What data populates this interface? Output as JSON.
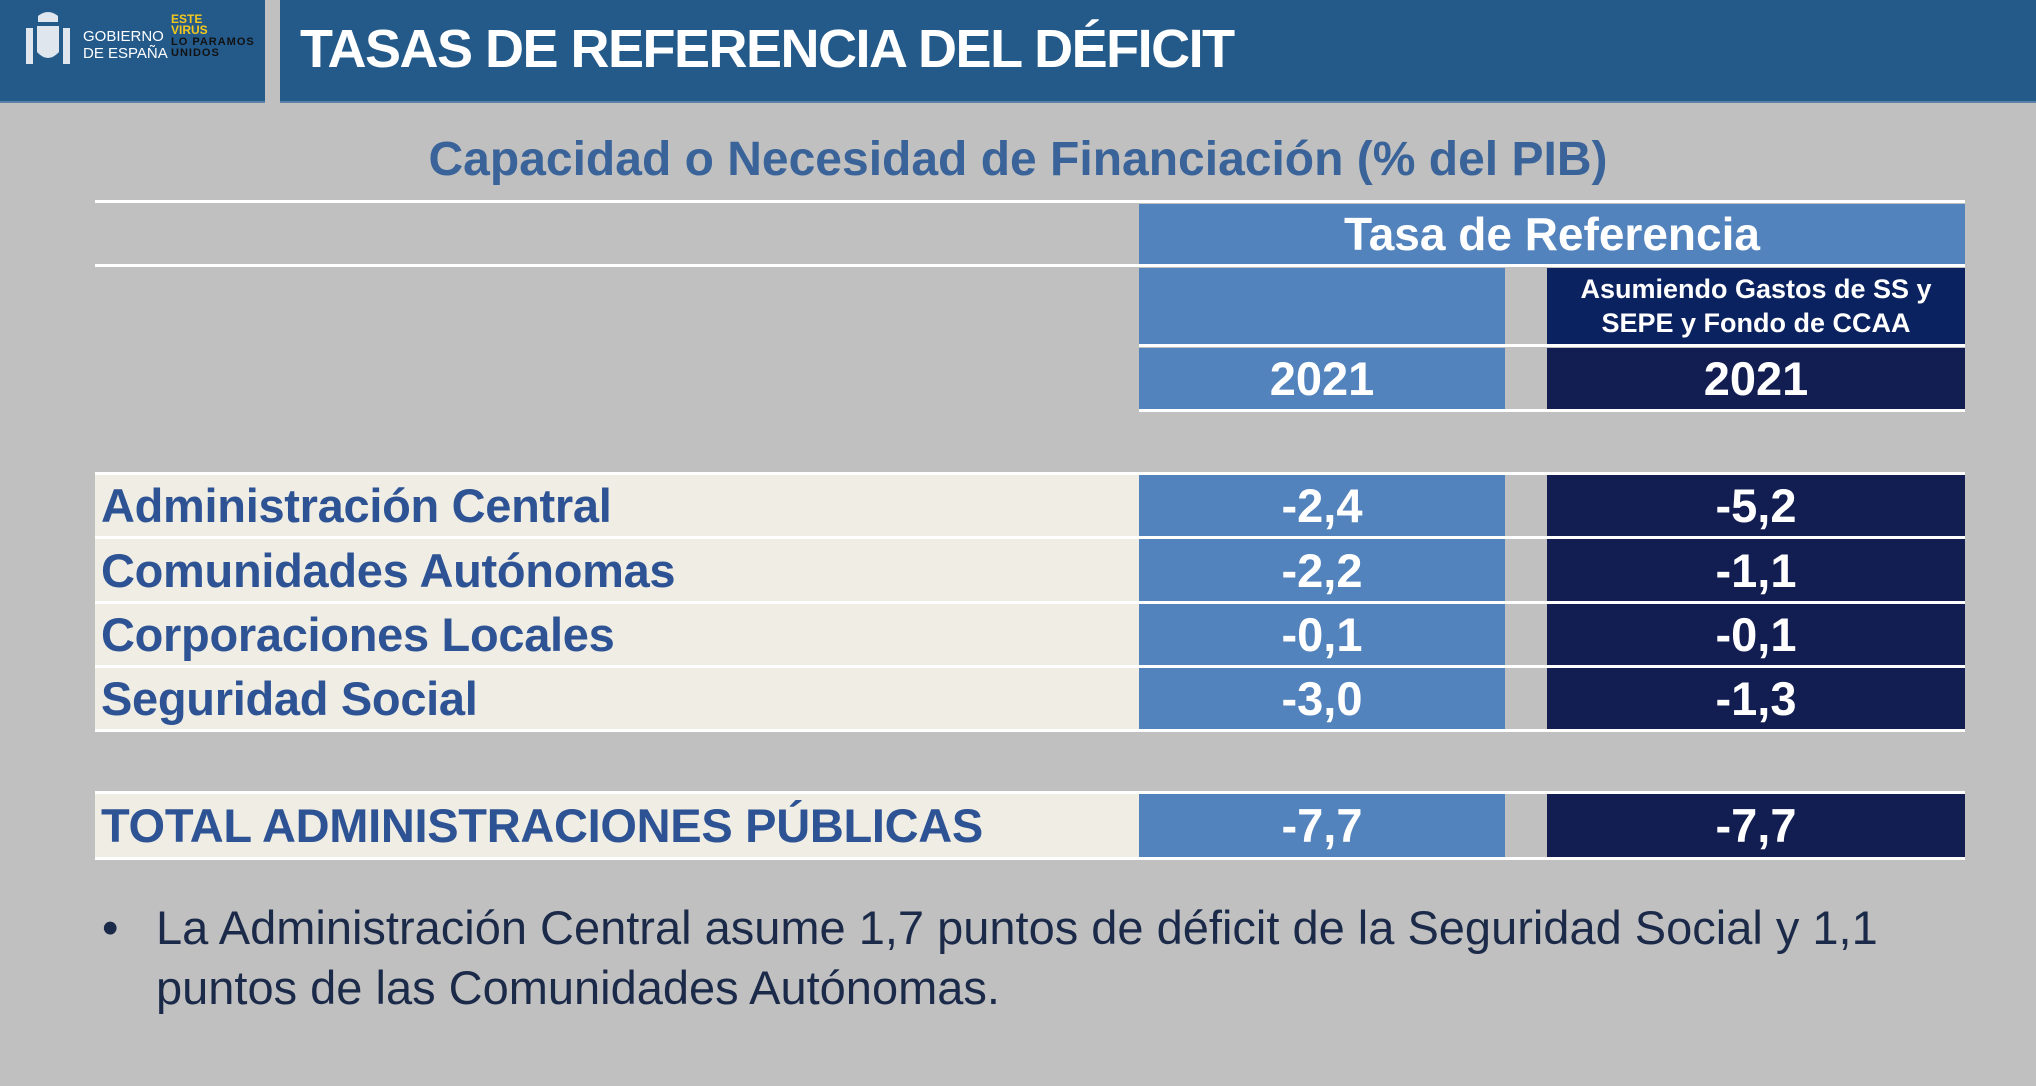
{
  "header": {
    "logo_text": [
      "GOBIERNO",
      "DE ESPAÑA"
    ],
    "campaign_logo": [
      "ESTE VIRUS",
      "LO PARAMOS",
      "UNIDOS"
    ],
    "title": "TASAS DE REFERENCIA DEL DÉFICIT"
  },
  "subtitle": "Capacidad o Necesidad de Financiación (% del PIB)",
  "table": {
    "group_header": "Tasa de  Referencia",
    "col2_subheader": "Asumiendo Gastos de SS y SEPE y Fondo de CCAA",
    "col1_year": "2021",
    "col2_year": "2021",
    "rows": [
      {
        "label": "Administración Central",
        "v1": "-2,4",
        "v2": "-5,2"
      },
      {
        "label": "Comunidades Autónomas",
        "v1": "-2,2",
        "v2": "-1,1"
      },
      {
        "label": "Corporaciones Locales",
        "v1": "-0,1",
        "v2": "-0,1"
      },
      {
        "label": "Seguridad Social",
        "v1": "-3,0",
        "v2": "-1,3"
      }
    ],
    "total": {
      "label": "TOTAL ADMINISTRACIONES PÚBLICAS",
      "v1": "-7,7",
      "v2": "-7,7"
    }
  },
  "note": {
    "bullet": "•",
    "text": "La Administración Central asume 1,7 puntos de déficit de la Seguridad Social y 1,1 puntos de las Comunidades Autónomas."
  },
  "colors": {
    "header": "#245a8a",
    "light_blue": "#5283bd",
    "navy": "#121d52",
    "label_text": "#2e5394",
    "background": "#c0c0c0"
  }
}
